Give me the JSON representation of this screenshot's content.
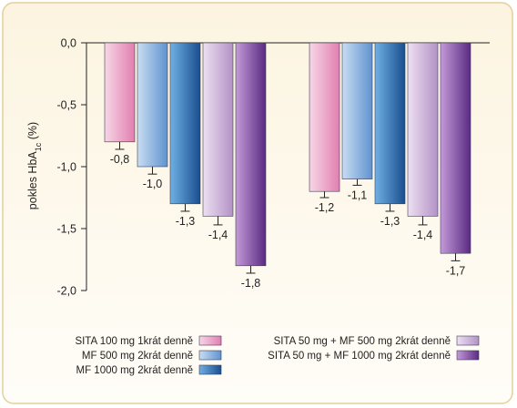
{
  "chart_data": {
    "type": "bar",
    "title": "",
    "xlabel": "",
    "ylabel": "pokles HbA",
    "ylabel_sub": "1c",
    "ylabel_unit": " (%)",
    "ylim": [
      -2.0,
      0.0
    ],
    "yticks": [
      0.0,
      -0.5,
      -1.0,
      -1.5,
      -2.0
    ],
    "ytick_labels": [
      "0,0",
      "-0,5",
      "-1,0",
      "-1,5",
      "-2,0"
    ],
    "grid": false,
    "legend_position": "bottom",
    "groups": [
      {
        "bars": [
          {
            "series": "SITA 100 mg 1krát denně",
            "value": -0.8,
            "label": "-0,8"
          },
          {
            "series": "MF 500 mg 2krát denně",
            "value": -1.0,
            "label": "-1,0"
          },
          {
            "series": "MF 1000 mg 2krát denně",
            "value": -1.3,
            "label": "-1,3"
          },
          {
            "series": "SITA 50 mg + MF 500 mg 2krát denně",
            "value": -1.4,
            "label": "-1,4"
          },
          {
            "series": "SITA 50 mg + MF 1000 mg 2krát denně",
            "value": -1.8,
            "label": "-1,8"
          }
        ]
      },
      {
        "bars": [
          {
            "series": "SITA 100 mg 1krát denně",
            "value": -1.2,
            "label": "-1,2"
          },
          {
            "series": "MF 500 mg 2krát denně",
            "value": -1.1,
            "label": "-1,1"
          },
          {
            "series": "MF 1000 mg 2krát denně",
            "value": -1.3,
            "label": "-1,3"
          },
          {
            "series": "SITA 50 mg + MF 500 mg 2krát denně",
            "value": -1.4,
            "label": "-1,4"
          },
          {
            "series": "SITA 50 mg + MF 1000 mg 2krát denně",
            "value": -1.7,
            "label": "-1,7"
          }
        ]
      }
    ],
    "series": [
      {
        "name": "SITA 100 mg 1krát denně",
        "colors": [
          "#f7d6e6",
          "#e17fb0"
        ]
      },
      {
        "name": "MF 500 mg 2krát denně",
        "colors": [
          "#c9ddf2",
          "#5f93cf"
        ]
      },
      {
        "name": "MF 1000 mg 2krát denně",
        "colors": [
          "#6fb0e4",
          "#1a4e8f"
        ]
      },
      {
        "name": "SITA 50 mg + MF 500 mg 2krát denně",
        "colors": [
          "#ede0f2",
          "#b392c6"
        ]
      },
      {
        "name": "SITA 50 mg + MF 1000 mg 2krát denně",
        "colors": [
          "#c49ad8",
          "#5a2a82"
        ]
      }
    ],
    "legend_layout": {
      "left_column": [
        "SITA 100 mg 1krát denně",
        "MF 500 mg 2krát denně",
        "MF 1000 mg 2krát denně"
      ],
      "right_column": [
        "SITA 50 mg + MF 500 mg 2krát denně",
        "SITA 50 mg + MF 1000 mg 2krát denně"
      ]
    }
  }
}
